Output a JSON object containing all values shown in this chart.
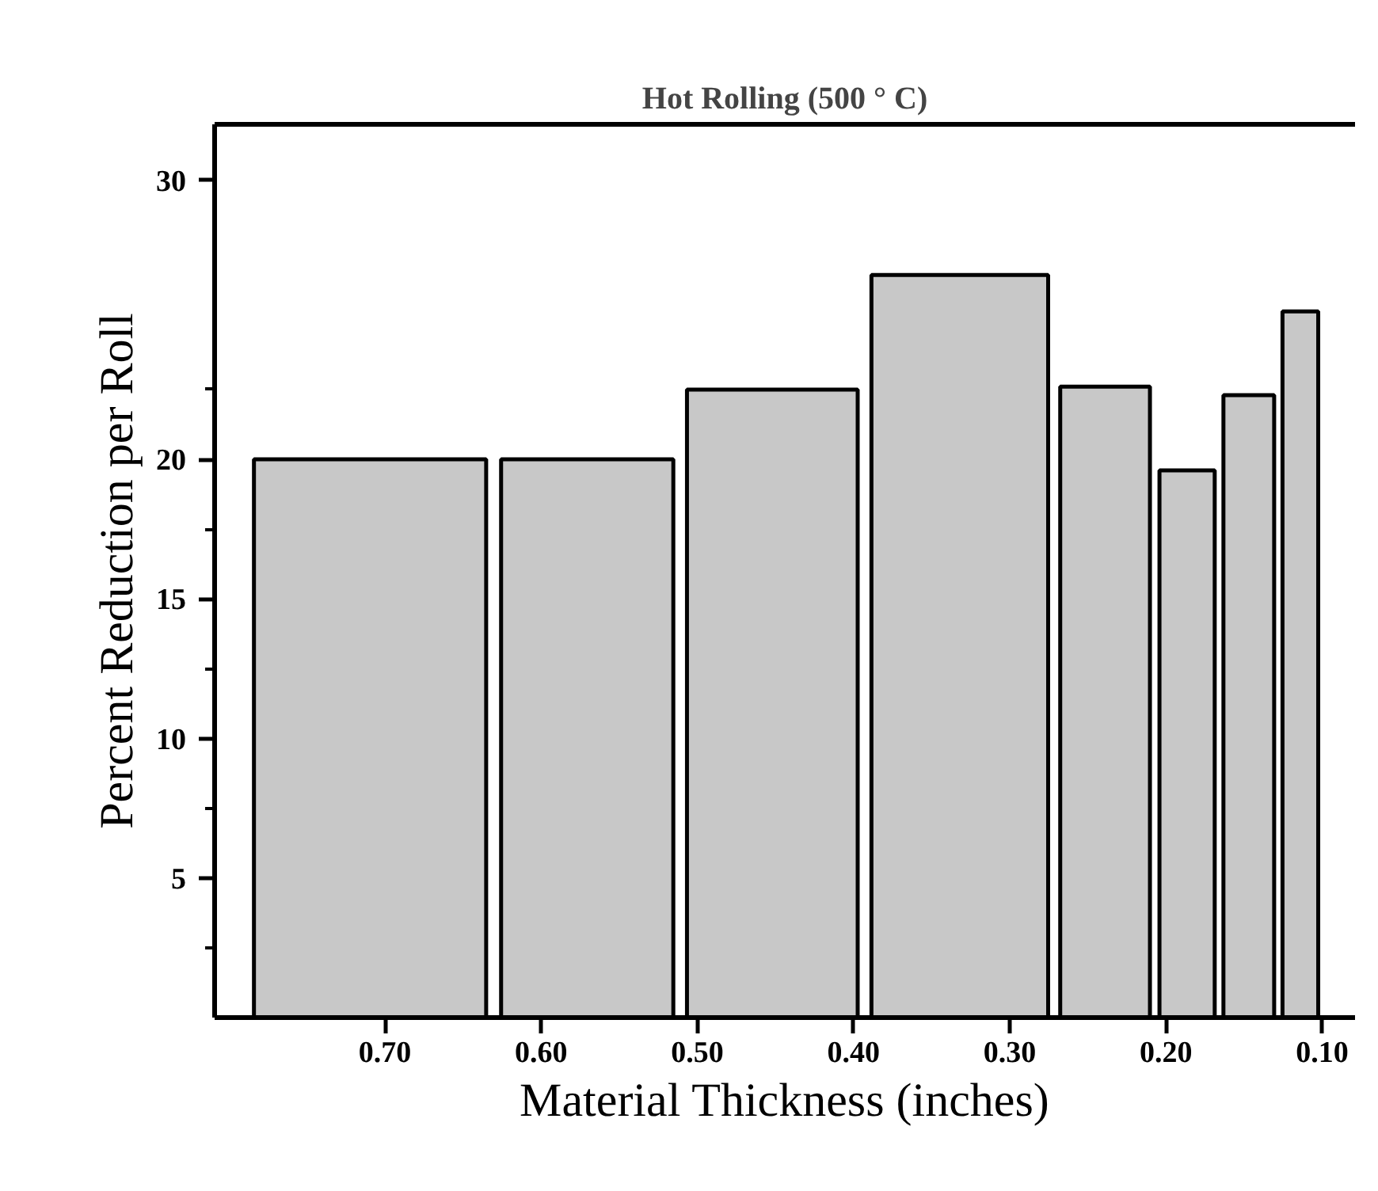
{
  "chart_data": {
    "type": "histogram",
    "title": "Hot Rolling (500 ° C)",
    "xlabel": "Material Thickness (inches)",
    "ylabel": "Percent Reduction per Roll",
    "bins": [
      0.789,
      0.63,
      0.511,
      0.393,
      0.271,
      0.207,
      0.166,
      0.128,
      0.1
    ],
    "values": [
      20,
      20,
      22.5,
      26.6,
      22.6,
      19.6,
      22.3,
      25.3
    ],
    "color": "#c8c8c8",
    "xlim": [
      0.809,
      0.079
    ],
    "ylim": [
      0,
      32
    ],
    "xticks": [
      {
        "value": 0.7,
        "label": "0.70"
      },
      {
        "value": 0.6,
        "label": "0.60"
      },
      {
        "value": 0.5,
        "label": "0.50"
      },
      {
        "value": 0.4,
        "label": "0.40"
      },
      {
        "value": 0.3,
        "label": "0.30"
      },
      {
        "value": 0.2,
        "label": "0.20"
      },
      {
        "value": 0.1,
        "label": "0.10"
      }
    ],
    "yticks": [
      5,
      10,
      15,
      20,
      30
    ],
    "grid": false
  }
}
